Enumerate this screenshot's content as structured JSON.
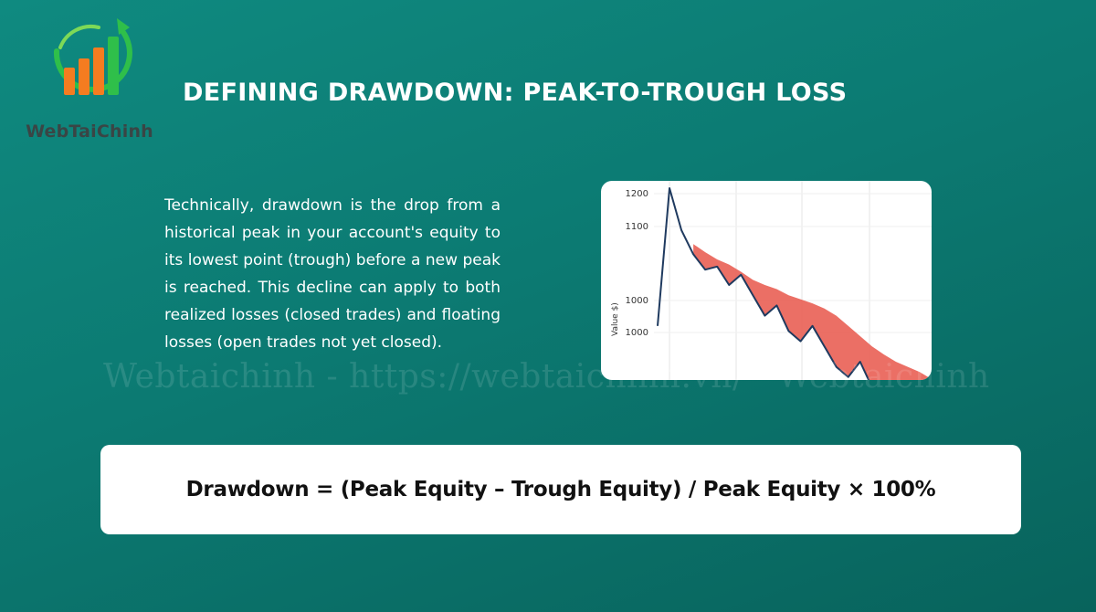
{
  "logo": {
    "text": "WebTaiChinh"
  },
  "title": "DEFINING DRAWDOWN: PEAK-TO-TROUGH LOSS",
  "description": "Technically, drawdown is the drop from a historical peak in your account's equity to its lowest point (trough) before a new peak is reached. This decline can apply to both realized losses (closed trades) and floating losses (open trades not yet closed).",
  "watermark": "Webtaichinh - https://webtaichinh.vn/ - Webtaichinh",
  "formula": "Drawdown = (Peak Equity – Trough Equity) / Peak Equity × 100%",
  "colors": {
    "background": "#0c7a72",
    "equity_line": "#1f3a5f",
    "drawdown_fill": "#e8564a",
    "logo_orange": "#f57c20",
    "logo_green": "#2fbf4a"
  },
  "chart_data": {
    "type": "line",
    "ylabel": "Value $)",
    "y_tick_labels": [
      "1200",
      "1100",
      "1000",
      "1000"
    ],
    "grid": true,
    "series": [
      {
        "values": [
          1010,
          1225,
          1110,
          1080,
          1065,
          1068,
          1050,
          1060,
          1040,
          1020,
          1030,
          1005,
          995,
          1010,
          990,
          970,
          960,
          975,
          950,
          945,
          940,
          942,
          935,
          930
        ]
      }
    ],
    "drawdown_band_upper": [
      null,
      null,
      null,
      1090,
      1082,
      1075,
      1070,
      1063,
      1055,
      1050,
      1046,
      1040,
      1036,
      1032,
      1027,
      1020,
      1010,
      1000,
      990,
      982,
      975,
      970,
      965,
      958
    ]
  }
}
